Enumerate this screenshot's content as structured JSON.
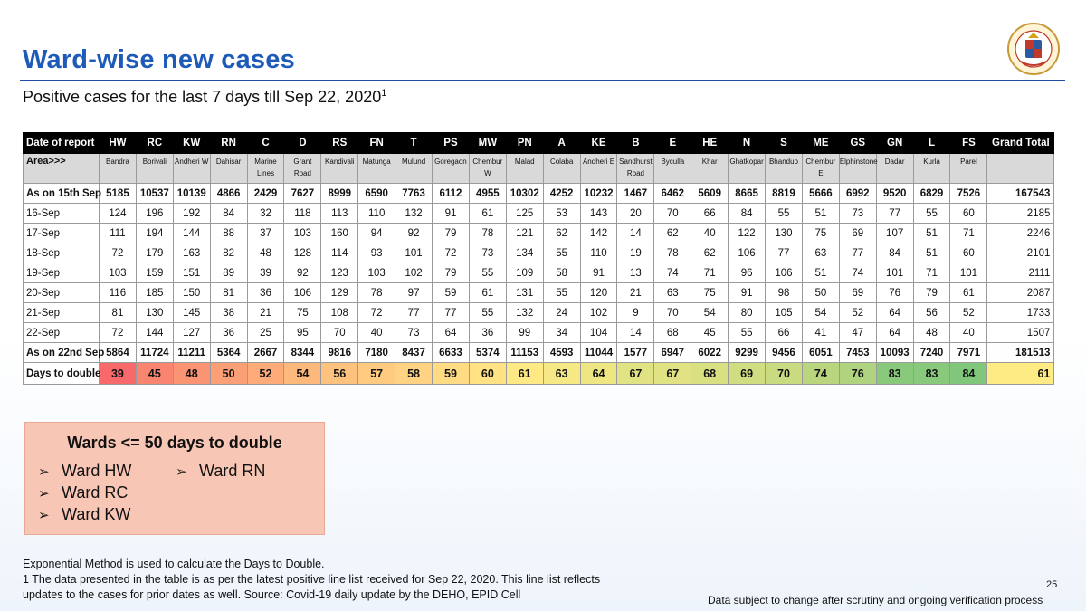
{
  "title": "Ward-wise new cases",
  "subtitle": "Positive cases for the last 7 days till Sep 22, 2020",
  "subtitle_sup": "1",
  "logo_text": "बृहन्मुंबई महानगरपालिका · Brihanmumbai Municipal Corporation",
  "table": {
    "corner_label": "Date of report",
    "wards": [
      "HW",
      "RC",
      "KW",
      "RN",
      "C",
      "D",
      "RS",
      "FN",
      "T",
      "PS",
      "MW",
      "PN",
      "A",
      "KE",
      "B",
      "E",
      "HE",
      "N",
      "S",
      "ME",
      "GS",
      "GN",
      "L",
      "FS"
    ],
    "total_label": "Grand Total",
    "area_label": "Area>>>",
    "areas": [
      "Bandra",
      "Borivali",
      "Andheri W",
      "Dahisar",
      "Marine Lines",
      "Grant Road",
      "Kandivali",
      "Matunga",
      "Mulund",
      "Goregaon",
      "Chembur W",
      "Malad",
      "Colaba",
      "Andheri E",
      "Sandhurst Road",
      "Byculla",
      "Khar",
      "Ghatkopar",
      "Bhandup",
      "Chembur E",
      "Elphinstone",
      "Dadar",
      "Kurla",
      "Parel",
      ""
    ],
    "rows": [
      {
        "label": "As on 15th Sep",
        "bold": true,
        "values": [
          "5185",
          "10537",
          "10139",
          "4866",
          "2429",
          "7627",
          "8999",
          "6590",
          "7763",
          "6112",
          "4955",
          "10302",
          "4252",
          "10232",
          "1467",
          "6462",
          "5609",
          "8665",
          "8819",
          "5666",
          "6992",
          "9520",
          "6829",
          "7526",
          "167543"
        ]
      },
      {
        "label": "16-Sep",
        "bold": false,
        "values": [
          "124",
          "196",
          "192",
          "84",
          "32",
          "118",
          "113",
          "110",
          "132",
          "91",
          "61",
          "125",
          "53",
          "143",
          "20",
          "70",
          "66",
          "84",
          "55",
          "51",
          "73",
          "77",
          "55",
          "60",
          "2185"
        ]
      },
      {
        "label": "17-Sep",
        "bold": false,
        "values": [
          "111",
          "194",
          "144",
          "88",
          "37",
          "103",
          "160",
          "94",
          "92",
          "79",
          "78",
          "121",
          "62",
          "142",
          "14",
          "62",
          "40",
          "122",
          "130",
          "75",
          "69",
          "107",
          "51",
          "71",
          "2246"
        ]
      },
      {
        "label": "18-Sep",
        "bold": false,
        "values": [
          "72",
          "179",
          "163",
          "82",
          "48",
          "128",
          "114",
          "93",
          "101",
          "72",
          "73",
          "134",
          "55",
          "110",
          "19",
          "78",
          "62",
          "106",
          "77",
          "63",
          "77",
          "84",
          "51",
          "60",
          "2101"
        ]
      },
      {
        "label": "19-Sep",
        "bold": false,
        "values": [
          "103",
          "159",
          "151",
          "89",
          "39",
          "92",
          "123",
          "103",
          "102",
          "79",
          "55",
          "109",
          "58",
          "91",
          "13",
          "74",
          "71",
          "96",
          "106",
          "51",
          "74",
          "101",
          "71",
          "101",
          "2111"
        ]
      },
      {
        "label": "20-Sep",
        "bold": false,
        "values": [
          "116",
          "185",
          "150",
          "81",
          "36",
          "106",
          "129",
          "78",
          "97",
          "59",
          "61",
          "131",
          "55",
          "120",
          "21",
          "63",
          "75",
          "91",
          "98",
          "50",
          "69",
          "76",
          "79",
          "61",
          "2087"
        ]
      },
      {
        "label": "21-Sep",
        "bold": false,
        "values": [
          "81",
          "130",
          "145",
          "38",
          "21",
          "75",
          "108",
          "72",
          "77",
          "77",
          "55",
          "132",
          "24",
          "102",
          "9",
          "70",
          "54",
          "80",
          "105",
          "54",
          "52",
          "64",
          "56",
          "52",
          "1733"
        ]
      },
      {
        "label": "22-Sep",
        "bold": false,
        "values": [
          "72",
          "144",
          "127",
          "36",
          "25",
          "95",
          "70",
          "40",
          "73",
          "64",
          "36",
          "99",
          "34",
          "104",
          "14",
          "68",
          "45",
          "55",
          "66",
          "41",
          "47",
          "64",
          "48",
          "40",
          "1507"
        ]
      },
      {
        "label": "As on 22nd Sep",
        "bold": true,
        "values": [
          "5864",
          "11724",
          "11211",
          "5364",
          "2667",
          "8344",
          "9816",
          "7180",
          "8437",
          "6633",
          "5374",
          "11153",
          "4593",
          "11044",
          "1577",
          "6947",
          "6022",
          "9299",
          "9456",
          "6051",
          "7453",
          "10093",
          "7240",
          "7971",
          "181513"
        ]
      }
    ],
    "doubling": {
      "label": "Days to double",
      "values": [
        "39",
        "45",
        "48",
        "50",
        "52",
        "54",
        "56",
        "57",
        "58",
        "59",
        "60",
        "61",
        "63",
        "64",
        "67",
        "67",
        "68",
        "69",
        "70",
        "74",
        "76",
        "83",
        "83",
        "84",
        "61"
      ],
      "colors": [
        "#f8696b",
        "#f98570",
        "#fa9473",
        "#fba076",
        "#fcab79",
        "#fdb87c",
        "#fdc27e",
        "#fecb81",
        "#ffd383",
        "#ffdb84",
        "#ffe284",
        "#ffe984",
        "#f6e884",
        "#eee683",
        "#e1e283",
        "#e1e283",
        "#d9e082",
        "#d1dd81",
        "#c9db80",
        "#b9d67e",
        "#afd37e",
        "#89c97c",
        "#89c97c",
        "#80c67b",
        "#ffeb84"
      ]
    }
  },
  "callout": {
    "title": "Wards <= 50 days to double",
    "arrow": "➢",
    "items": [
      "Ward HW",
      "Ward RC",
      "Ward KW",
      "Ward RN"
    ]
  },
  "footnote": {
    "line1": "Exponential Method is used to calculate the Days to Double.",
    "line2": "1 The data presented in the table is as per the latest positive line list received for Sep 22, 2020. This line list reflects",
    "line3": "updates to the cases for prior dates as well. Source: Covid-19 daily update by the DEHO, EPID Cell"
  },
  "page_number": "25",
  "disclaimer": "Data subject to change after scrutiny and ongoing verification process"
}
